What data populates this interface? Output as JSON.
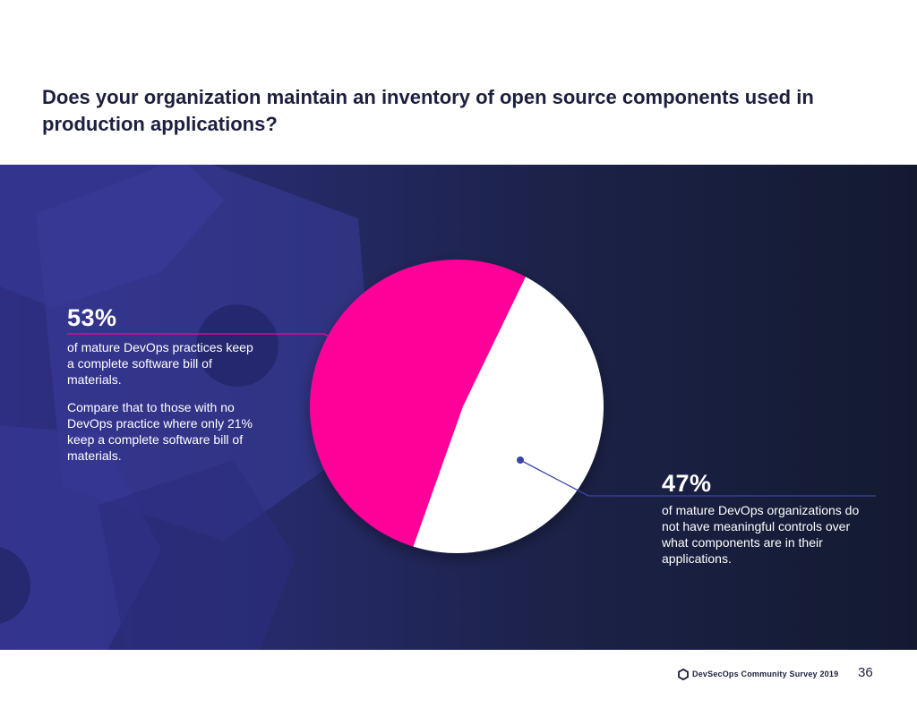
{
  "title": "Does your organization maintain an inventory of open source components used in production applications?",
  "colors": {
    "pink": "#ff0099",
    "white": "#ffffff",
    "pink_line": "#ff0099",
    "blue_line": "#3a45a8"
  },
  "chart_data": {
    "type": "pie",
    "title": "Does your organization maintain an inventory of open source components used in production applications?",
    "categories": [
      "keep a complete software bill of materials",
      "do not have meaningful controls"
    ],
    "values": [
      53,
      47
    ],
    "unit": "%"
  },
  "callout_left": {
    "value": "53%",
    "text": "of mature DevOps practices keep a complete software bill of materials.",
    "compare": "Compare that to those with no DevOps practice where only 21% keep a complete software bill of materials."
  },
  "callout_right": {
    "value": "47%",
    "text": "of mature DevOps organizations do not have meaningful controls over what components are in their applications."
  },
  "footer": {
    "logo_icon": "hexagon-logo-icon",
    "brand": "DevSecOps Community Survey 2019",
    "page": "36"
  }
}
